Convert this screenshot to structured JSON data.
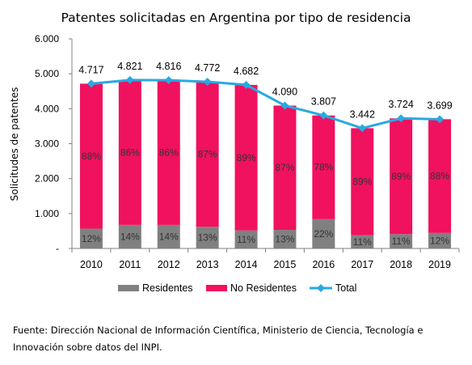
{
  "chart_data": {
    "type": "bar",
    "stacked": true,
    "title": "Patentes solicitadas en Argentina por tipo de residencia",
    "ylabel": "Solicitudes de patentes",
    "xlabel": "",
    "ylim": [
      0,
      6000
    ],
    "yticks": [
      "-",
      "1.000",
      "2.000",
      "3.000",
      "4.000",
      "5.000",
      "6.000"
    ],
    "categories": [
      "2010",
      "2011",
      "2012",
      "2013",
      "2014",
      "2015",
      "2016",
      "2017",
      "2018",
      "2019"
    ],
    "series": [
      {
        "name": "Residentes",
        "color": "#808080",
        "values": [
          566,
          675,
          674,
          620,
          515,
          532,
          838,
          379,
          410,
          444
        ],
        "labels": [
          "12%",
          "14%",
          "14%",
          "13%",
          "11%",
          "13%",
          "22%",
          "11%",
          "11%",
          "12%"
        ]
      },
      {
        "name": "No Residentes",
        "color": "#f0115f",
        "values": [
          4151,
          4146,
          4142,
          4152,
          4167,
          3558,
          2969,
          3063,
          3314,
          3255
        ],
        "labels": [
          "88%",
          "86%",
          "86%",
          "87%",
          "89%",
          "87%",
          "78%",
          "89%",
          "89%",
          "88%"
        ]
      }
    ],
    "line": {
      "name": "Total",
      "color": "#29a9e1",
      "values": [
        4717,
        4821,
        4816,
        4772,
        4682,
        4090,
        3807,
        3442,
        3724,
        3699
      ],
      "labels": [
        "4.717",
        "4.821",
        "4.816",
        "4.772",
        "4.682",
        "4.090",
        "3.807",
        "3.442",
        "3.724",
        "3.699"
      ]
    },
    "legend_position": "bottom",
    "grid": false
  },
  "source": {
    "line1": "Fuente: Dirección Nacional de Información Científica, Ministerio de Ciencia, Tecnología e",
    "line2": "Innovación sobre datos del INPI."
  }
}
